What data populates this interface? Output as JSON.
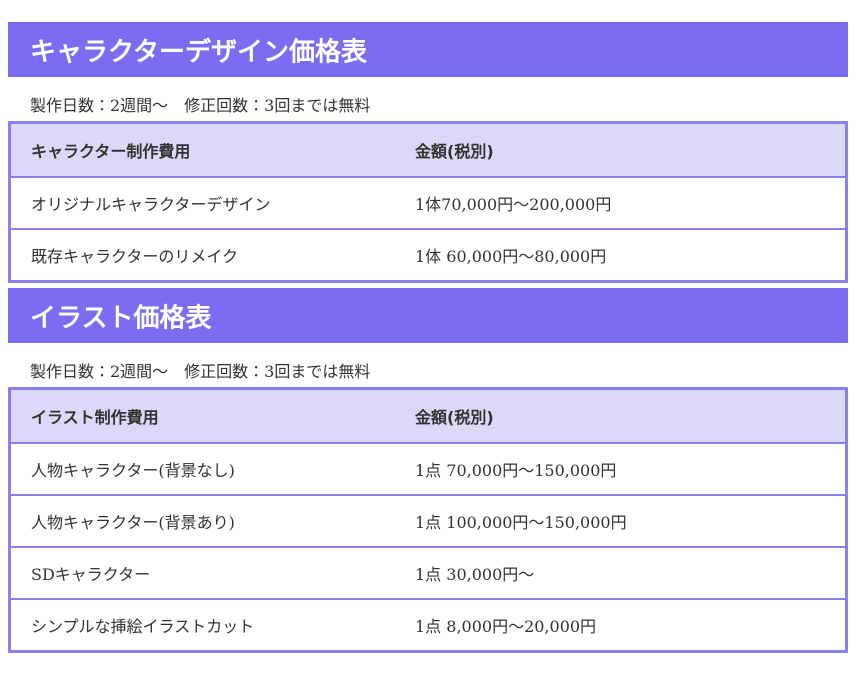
{
  "sections": [
    {
      "title": "キャラクターデザイン価格表",
      "note": "製作日数：2週間〜　修正回数：3回までは無料",
      "table": {
        "header": [
          "キャラクター制作費用",
          "金額(税別)"
        ],
        "rows": [
          [
            "オリジナルキャラクターデザイン",
            "1体70,000円〜200,000円"
          ],
          [
            "既存キャラクターのリメイク",
            "1体 60,000円〜80,000円"
          ]
        ]
      }
    },
    {
      "title": "イラスト価格表",
      "note": "製作日数：2週間〜　修正回数：3回までは無料",
      "table": {
        "header": [
          "イラスト制作費用",
          "金額(税別)"
        ],
        "rows": [
          [
            "人物キャラクター(背景なし)",
            "1点 70,000円〜150,000円"
          ],
          [
            "人物キャラクター(背景あり)",
            "1点 100,000円〜150,000円"
          ],
          [
            "SDキャラクター",
            "1点 30,000円〜"
          ],
          [
            "シンプルな挿絵イラストカット",
            "1点 8,000円〜20,000円"
          ]
        ]
      }
    }
  ]
}
